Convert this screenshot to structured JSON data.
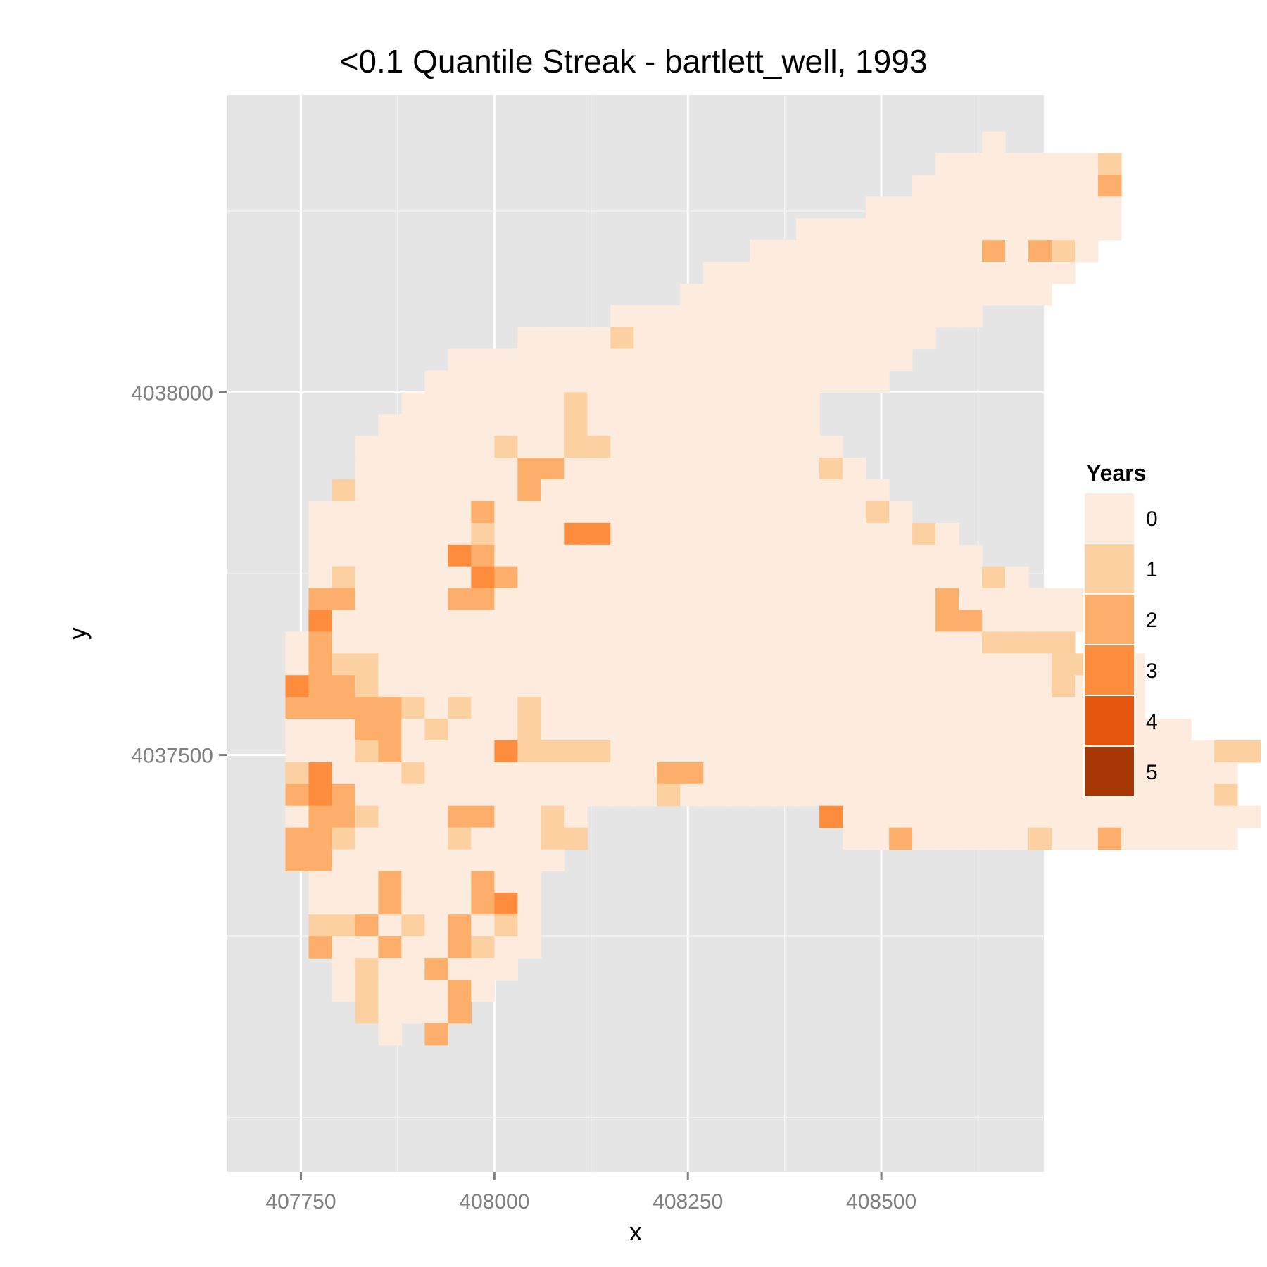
{
  "chart_data": {
    "type": "heatmap",
    "title": "<0.1 Quantile Streak - bartlett_well, 1993",
    "xlabel": "x",
    "ylabel": "y",
    "x_ticks": [
      407750,
      408000,
      408250,
      408500
    ],
    "y_ticks": [
      4037500,
      4038000
    ],
    "xlim": [
      407655,
      408710
    ],
    "ylim": [
      4036925,
      4038410
    ],
    "x_start": 407700,
    "y_top": 4038360,
    "cell_x": 30,
    "cell_y": 30,
    "grid_visible": true,
    "legend": {
      "title": "Years",
      "position": "right",
      "labels": [
        "0",
        "1",
        "2",
        "3",
        "4",
        "5"
      ],
      "colors": [
        "#fdebdd",
        "#fdd0a2",
        "#fdae6b",
        "#fd8d3c",
        "#e6550d",
        "#a63603"
      ]
    },
    "legend_title": "Years",
    "legend_labels": [
      "0",
      "1",
      "2",
      "3",
      "4",
      "5"
    ],
    "rows": [
      "...............................0.....",
      ".............................00000001",
      "............................000000002",
      "..........................00000000000",
      ".......................00000000000000",
      ".....................000000000020210.",
      "...................0000000000000000..",
      "..................0000000000000000...",
      "...............0000000000000000......",
      "...........000010000000000000........",
      "........00000000000000000000.........",
      ".......00000000000000000000..........",
      "......000000010000000000.............",
      ".....0000000010000000000.............",
      "....000000100110000000000............",
      "....0000000220000000000010...........",
      "...100000002000000000000000..........",
      "..00000002000000000000000010.........",
      "..0000000100033000000000000010.......",
      "..00000032000000000000000000000......",
      "..0100000320000000000000000000010....",
      "..2200002200000000000000000002000000.",
      "..3000000000000000000000000002200000.",
      ".0200000000000000000000000000001111..",
      ".0211000000000000000000000000000001100",
      ".3221000000000000000000000000000001020",
      ".2222210100100000000000000000000000010",
      ".000220100010000000000000000000000000000",
      ".000120000311110000000000000000000000000011",
      ".13000100000000002200000000000000000000000",
      ".23200000000000001000000000000000000000001",
      ".0221000220010..........3000000000000000000",
      ".2210000100011...........00200000100200000.",
      ".220000000000.......................",
      "..0002000200.........",
      "..0002000230.........",
      "..1120102010.........",
      "..2002002100.........",
      "...01002000..........",
      "...0100020...........",
      "....10002............",
      ".....0.2............."
    ]
  }
}
